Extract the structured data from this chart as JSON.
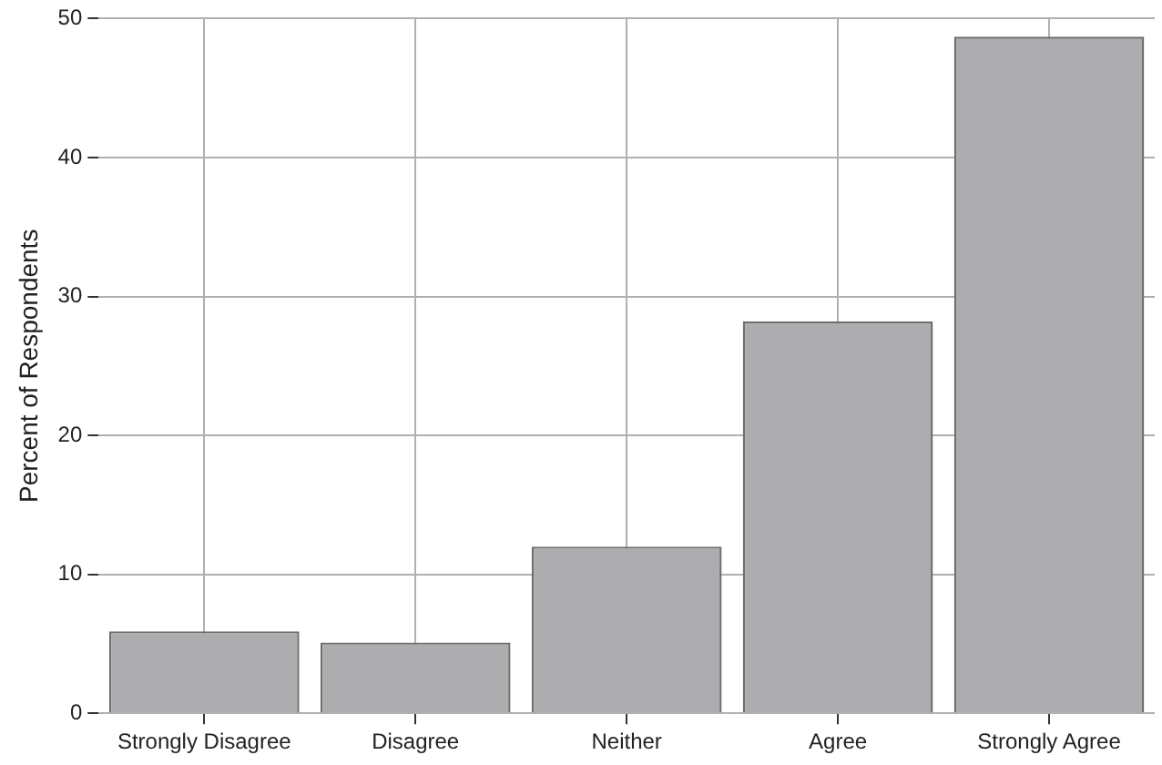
{
  "chart_data": {
    "type": "bar",
    "ylabel": "Percent of Respondents",
    "categories": [
      "Strongly Disagree",
      "Disagree",
      "Neither",
      "Agree",
      "Strongly Agree"
    ],
    "values": [
      5.9,
      5.1,
      12.0,
      28.2,
      48.7
    ],
    "color": "#adadb0",
    "ylim": [
      0,
      50
    ],
    "yticks": [
      0,
      10,
      20,
      30,
      40,
      50
    ],
    "grid": true
  }
}
